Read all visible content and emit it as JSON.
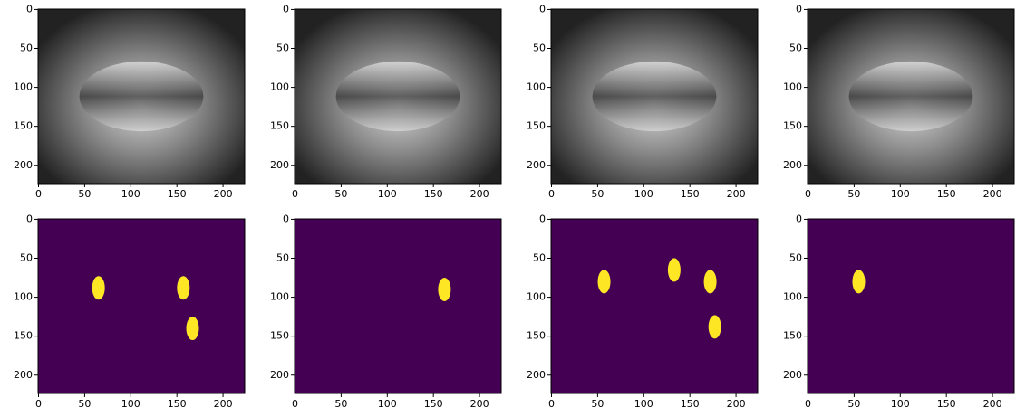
{
  "chart_data": [
    {
      "type": "image",
      "xlim": [
        -0.5,
        223.5
      ],
      "ylim": [
        223.5,
        -0.5
      ],
      "xticks": [
        0,
        50,
        100,
        150,
        200
      ],
      "yticks": [
        0,
        50,
        100,
        150,
        200
      ]
    },
    {
      "type": "image",
      "xlim": [
        -0.5,
        223.5
      ],
      "ylim": [
        223.5,
        -0.5
      ],
      "xticks": [
        0,
        50,
        100,
        150,
        200
      ],
      "yticks": [
        0,
        50,
        100,
        150,
        200
      ]
    },
    {
      "type": "image",
      "xlim": [
        -0.5,
        223.5
      ],
      "ylim": [
        223.5,
        -0.5
      ],
      "xticks": [
        0,
        50,
        100,
        150,
        200
      ],
      "yticks": [
        0,
        50,
        100,
        150,
        200
      ]
    },
    {
      "type": "image",
      "xlim": [
        -0.5,
        223.5
      ],
      "ylim": [
        223.5,
        -0.5
      ],
      "xticks": [
        0,
        50,
        100,
        150,
        200
      ],
      "yticks": [
        0,
        50,
        100,
        150,
        200
      ]
    },
    {
      "type": "mask",
      "xlim": [
        -0.5,
        223.5
      ],
      "ylim": [
        223.5,
        -0.5
      ],
      "xticks": [
        0,
        50,
        100,
        150,
        200
      ],
      "yticks": [
        0,
        50,
        100,
        150,
        200
      ],
      "background": "#440154",
      "color": "#fde725",
      "regions": {
        "x": [
          65,
          157,
          167
        ],
        "y": [
          88,
          88,
          140
        ]
      }
    },
    {
      "type": "mask",
      "xlim": [
        -0.5,
        223.5
      ],
      "ylim": [
        223.5,
        -0.5
      ],
      "xticks": [
        0,
        50,
        100,
        150,
        200
      ],
      "yticks": [
        0,
        50,
        100,
        150,
        200
      ],
      "background": "#440154",
      "color": "#fde725",
      "regions": {
        "x": [
          162
        ],
        "y": [
          90
        ]
      }
    },
    {
      "type": "mask",
      "xlim": [
        -0.5,
        223.5
      ],
      "ylim": [
        223.5,
        -0.5
      ],
      "xticks": [
        0,
        50,
        100,
        150,
        200
      ],
      "yticks": [
        0,
        50,
        100,
        150,
        200
      ],
      "background": "#440154",
      "color": "#fde725",
      "regions": {
        "x": [
          57,
          133,
          172,
          177
        ],
        "y": [
          80,
          65,
          80,
          138
        ]
      }
    },
    {
      "type": "mask",
      "xlim": [
        -0.5,
        223.5
      ],
      "ylim": [
        223.5,
        -0.5
      ],
      "xticks": [
        0,
        50,
        100,
        150,
        200
      ],
      "yticks": [
        0,
        50,
        100,
        150,
        200
      ],
      "background": "#440154",
      "color": "#fde725",
      "regions": {
        "x": [
          55
        ],
        "y": [
          80
        ]
      }
    }
  ]
}
